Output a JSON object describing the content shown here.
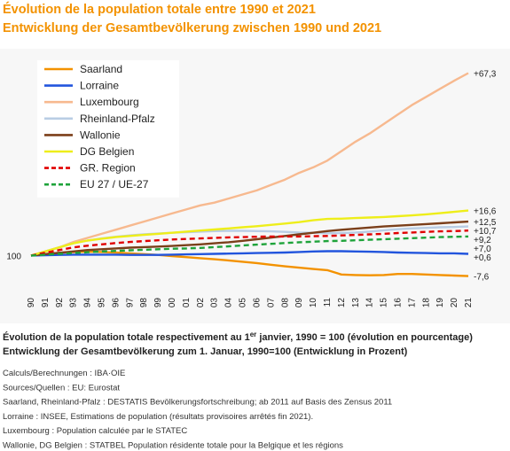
{
  "chart_data": {
    "type": "line",
    "title": "Évolution de la population totale entre 1990 et 2021",
    "subtitle": "Entwicklung der Gesamtbevölkerung zwischen 1990 und 2021",
    "categories": [
      "90",
      "91",
      "92",
      "93",
      "94",
      "95",
      "96",
      "97",
      "98",
      "99",
      "00",
      "01",
      "02",
      "03",
      "04",
      "05",
      "06",
      "07",
      "08",
      "09",
      "10",
      "11",
      "12",
      "13",
      "14",
      "15",
      "16",
      "17",
      "18",
      "19",
      "20",
      "21"
    ],
    "ylim": [
      -11,
      74
    ],
    "yticks": [
      {
        "value": 0,
        "label": "100"
      }
    ],
    "grid": false,
    "legend": "upper left",
    "series": [
      {
        "name": "Saarland",
        "color": "#f39200",
        "dash": false,
        "values": [
          0,
          0.5,
          1,
          1.3,
          1.4,
          1.3,
          1.1,
          0.8,
          0.5,
          0.2,
          -0.2,
          -0.6,
          -1,
          -1.4,
          -1.8,
          -2.3,
          -2.8,
          -3.4,
          -4,
          -4.5,
          -5,
          -5.4,
          -7,
          -7.2,
          -7.3,
          -7.2,
          -6.8,
          -6.8,
          -7,
          -7.2,
          -7.4,
          -7.6
        ],
        "value_labels": [
          null,
          null,
          null,
          null,
          null,
          null,
          null,
          null,
          null,
          null,
          null,
          null,
          null,
          null,
          null,
          null,
          null,
          null,
          null,
          null,
          null,
          null,
          null,
          null,
          null,
          null,
          null,
          null,
          null,
          null,
          null,
          "-7,6"
        ]
      },
      {
        "name": "Lorraine",
        "color": "#2255dd",
        "dash": false,
        "values": [
          0,
          0.1,
          0.2,
          0.3,
          0.3,
          0.3,
          0.3,
          0.2,
          0.2,
          0.2,
          0.3,
          0.4,
          0.5,
          0.6,
          0.7,
          0.8,
          0.9,
          1,
          1.1,
          1.3,
          1.5,
          1.6,
          1.6,
          1.5,
          1.4,
          1.3,
          1.1,
          1,
          0.9,
          0.8,
          0.8,
          0.6
        ],
        "value_labels": [
          null,
          null,
          null,
          null,
          null,
          null,
          null,
          null,
          null,
          null,
          null,
          null,
          null,
          null,
          null,
          null,
          null,
          null,
          null,
          null,
          null,
          null,
          null,
          null,
          null,
          null,
          null,
          null,
          null,
          null,
          null,
          "+0,6"
        ]
      },
      {
        "name": "Luxembourg",
        "color": "#f7b98f",
        "dash": false,
        "values": [
          0,
          1.5,
          3,
          5,
          6.5,
          8,
          9.5,
          11,
          12.5,
          14,
          15.5,
          17,
          18.5,
          19.5,
          21,
          22.5,
          24,
          26,
          28,
          30.5,
          32.5,
          35,
          38.5,
          42,
          45,
          48.5,
          52,
          55.5,
          58.5,
          61.5,
          64.5,
          67.3
        ],
        "value_labels": [
          null,
          null,
          null,
          null,
          null,
          null,
          null,
          null,
          null,
          null,
          null,
          null,
          null,
          null,
          null,
          null,
          null,
          null,
          null,
          null,
          null,
          null,
          null,
          null,
          null,
          null,
          null,
          null,
          null,
          null,
          null,
          "+67,3"
        ]
      },
      {
        "name": "Rheinland-Pfalz",
        "color": "#b9cde4",
        "dash": false,
        "values": [
          0,
          1.5,
          3,
          4.5,
          5.5,
          6.3,
          6.9,
          7.4,
          7.8,
          8.1,
          8.4,
          8.6,
          8.8,
          9,
          9.1,
          9.1,
          9,
          8.9,
          8.7,
          8.5,
          8.4,
          8.2,
          8.3,
          8.5,
          8.8,
          9.3,
          9.7,
          10,
          10.2,
          10.4,
          10.5,
          10.7
        ],
        "value_labels": [
          null,
          null,
          null,
          null,
          null,
          null,
          null,
          null,
          null,
          null,
          null,
          null,
          null,
          null,
          null,
          null,
          null,
          null,
          null,
          null,
          null,
          null,
          null,
          null,
          null,
          null,
          null,
          null,
          null,
          null,
          null,
          "+10,7"
        ]
      },
      {
        "name": "Wallonie",
        "color": "#7b3f1a",
        "dash": false,
        "values": [
          0,
          0.5,
          1,
          1.5,
          2,
          2.3,
          2.6,
          2.9,
          3.1,
          3.3,
          3.5,
          3.8,
          4.1,
          4.5,
          4.9,
          5.4,
          6,
          6.6,
          7.2,
          7.8,
          8.4,
          9,
          9.5,
          9.9,
          10.3,
          10.7,
          11,
          11.3,
          11.6,
          11.9,
          12.2,
          12.5
        ],
        "value_labels": [
          null,
          null,
          null,
          null,
          null,
          null,
          null,
          null,
          null,
          null,
          null,
          null,
          null,
          null,
          null,
          null,
          null,
          null,
          null,
          null,
          null,
          null,
          null,
          null,
          null,
          null,
          null,
          null,
          null,
          null,
          null,
          "+12,5"
        ]
      },
      {
        "name": "DG Belgien",
        "color": "#eeee1a",
        "dash": false,
        "values": [
          0,
          1.5,
          3,
          4.5,
          5.5,
          6.2,
          6.8,
          7.2,
          7.6,
          8,
          8.4,
          8.8,
          9.2,
          9.6,
          10,
          10.4,
          10.8,
          11.3,
          11.8,
          12.3,
          13,
          13.5,
          13.6,
          13.8,
          14,
          14.2,
          14.5,
          14.8,
          15.2,
          15.6,
          16.1,
          16.6
        ],
        "value_labels": [
          null,
          null,
          null,
          null,
          null,
          null,
          null,
          null,
          null,
          null,
          null,
          null,
          null,
          null,
          null,
          null,
          null,
          null,
          null,
          null,
          null,
          null,
          null,
          null,
          null,
          null,
          null,
          null,
          null,
          null,
          null,
          "+16,6"
        ]
      },
      {
        "name": "GR. Region",
        "color": "#e00000",
        "dash": true,
        "values": [
          0,
          1,
          2,
          3,
          3.6,
          4.1,
          4.6,
          5,
          5.3,
          5.6,
          5.9,
          6.1,
          6.3,
          6.5,
          6.7,
          6.8,
          6.9,
          7,
          7,
          7,
          7.1,
          7.2,
          7.4,
          7.6,
          7.8,
          8,
          8.3,
          8.5,
          8.7,
          8.9,
          9,
          9.2
        ],
        "value_labels": [
          null,
          null,
          null,
          null,
          null,
          null,
          null,
          null,
          null,
          null,
          null,
          null,
          null,
          null,
          null,
          null,
          null,
          null,
          null,
          null,
          null,
          null,
          null,
          null,
          null,
          null,
          null,
          null,
          null,
          null,
          null,
          "+9,2"
        ]
      },
      {
        "name": "EU 27 / UE-27",
        "color": "#1ea33a",
        "dash": true,
        "values": [
          0,
          0.3,
          0.6,
          0.9,
          1.2,
          1.5,
          1.7,
          1.9,
          2.1,
          2.3,
          2.5,
          2.6,
          2.8,
          3.1,
          3.4,
          3.7,
          4,
          4.3,
          4.6,
          4.9,
          5.1,
          5.3,
          5.4,
          5.6,
          5.8,
          6,
          6.2,
          6.4,
          6.6,
          6.8,
          6.9,
          7.0
        ],
        "value_labels": [
          null,
          null,
          null,
          null,
          null,
          null,
          null,
          null,
          null,
          null,
          null,
          null,
          null,
          null,
          null,
          null,
          null,
          null,
          null,
          null,
          null,
          null,
          null,
          null,
          null,
          null,
          null,
          null,
          null,
          null,
          null,
          "+7,0"
        ]
      }
    ],
    "caption": {
      "line1": [
        "Évolution de la population totale respectivement au 1",
        "er",
        " janvier, 1990 = 100 (évolution en pourcentage)"
      ],
      "line2": "Entwicklung der Gesamtbevölkerung zum 1. Januar, 1990=100 (Entwicklung in Prozent)"
    },
    "sources": [
      "Calculs/Berechnungen : IBA·OIE",
      "Sources/Quellen : EU: Eurostat",
      "Saarland, Rheinland-Pfalz : DESTATIS Bevölkerungsfortschreibung; ab 2011 auf Basis des Zensus 2011",
      "Lorraine : INSEE, Estimations de population (résultats provisoires arrêtés fin 2021).",
      "Luxembourg : Population calculée par le STATEC",
      "Wallonie, DG Belgien : STATBEL Population résidente totale pour la Belgique et les régions"
    ]
  }
}
